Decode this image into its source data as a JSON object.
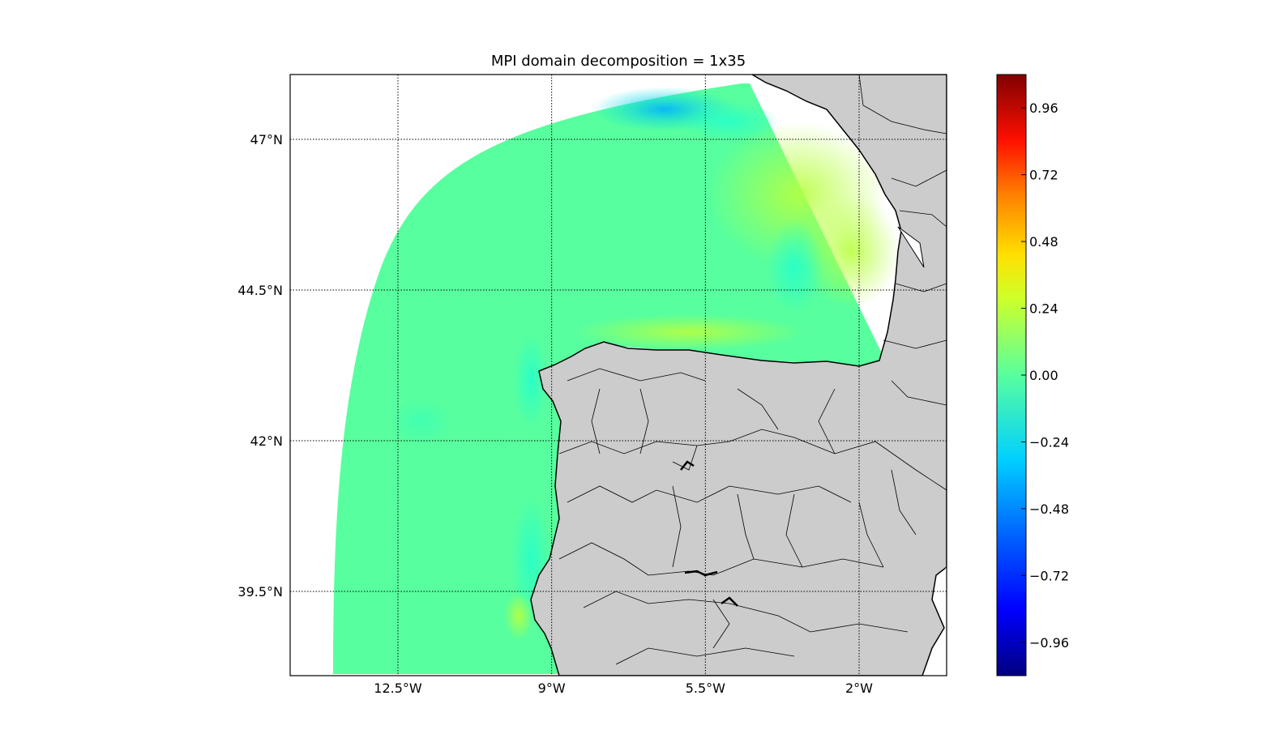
{
  "title": "MPI domain decomposition = 1x35",
  "map": {
    "lat_labels": [
      "47°N",
      "44.5°N",
      "42°N",
      "39.5°N"
    ],
    "lon_labels": [
      "12.5°W",
      "9°W",
      "5.5°W",
      "2°W"
    ],
    "lat_values": [
      47,
      44.5,
      42,
      39.5
    ],
    "lon_values": [
      -12.5,
      -9,
      -5.5,
      -2
    ],
    "land_color": "#cccccc",
    "ocean_field_color": "#58ff9e",
    "gridlines": "dotted",
    "colormap": "jet"
  },
  "colorbar": {
    "ticks": [
      "0.96",
      "0.72",
      "0.48",
      "0.24",
      "0.00",
      "−0.24",
      "−0.48",
      "−0.72",
      "−0.96"
    ],
    "range": [
      -1.08,
      1.08
    ],
    "colors": [
      "#000080",
      "#0000ff",
      "#0080ff",
      "#00ffff",
      "#80ff80",
      "#ffff00",
      "#ff8000",
      "#ff0000",
      "#800000"
    ]
  }
}
